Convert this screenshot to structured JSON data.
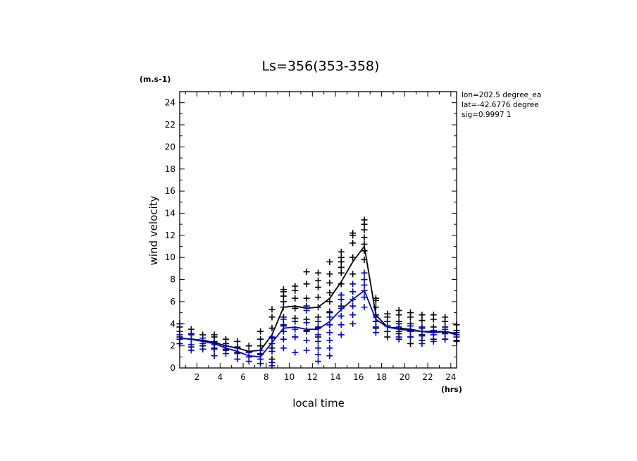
{
  "chart_data": {
    "type": "line",
    "title": "Ls=356(353-358)",
    "xlabel": "local time",
    "ylabel": "wind velocity",
    "xunit": "(hrs)",
    "yunit": "(m.s-1)",
    "xlim": [
      0.5,
      24.5
    ],
    "ylim": [
      0,
      25
    ],
    "xticks": [
      2,
      4,
      6,
      8,
      10,
      12,
      14,
      16,
      18,
      20,
      22,
      24
    ],
    "yticks": [
      0,
      2,
      4,
      6,
      8,
      10,
      12,
      14,
      16,
      18,
      20,
      22,
      24
    ],
    "grid": false,
    "annotations": [
      "lon=202.5 degree_ea",
      "lat=-42.6776 degree",
      "sig=0.9997 1"
    ],
    "x": [
      0.5,
      1.5,
      2.5,
      3.5,
      4.5,
      5.5,
      6.5,
      7.5,
      8.5,
      9.5,
      10.5,
      11.5,
      12.5,
      13.5,
      14.5,
      15.5,
      16.5,
      17.5,
      18.5,
      19.5,
      20.5,
      21.5,
      22.5,
      23.5,
      24.5
    ],
    "series": [
      {
        "color": "#000000",
        "mean": [
          2.7,
          2.6,
          2.5,
          2.3,
          2.0,
          1.8,
          1.5,
          1.6,
          3.0,
          5.5,
          5.6,
          5.4,
          5.5,
          6.3,
          7.8,
          9.6,
          11.0,
          4.8,
          3.7,
          3.6,
          3.5,
          3.3,
          3.3,
          3.3,
          3.1
        ],
        "scatter": [
          [
            2.2,
            2.8,
            3.3,
            3.7,
            4.0
          ],
          [
            1.9,
            2.6,
            3.1,
            3.5
          ],
          [
            2.0,
            2.5,
            3.0
          ],
          [
            1.8,
            2.3,
            2.8,
            3.0
          ],
          [
            1.6,
            2.2,
            2.6
          ],
          [
            1.4,
            1.9,
            2.4
          ],
          [
            1.0,
            1.5,
            2.0
          ],
          [
            1.2,
            2.0,
            2.6,
            3.3
          ],
          [
            0.8,
            1.8,
            2.7,
            3.6,
            4.6,
            5.3
          ],
          [
            3.8,
            4.6,
            5.5,
            6.0,
            6.5,
            6.9,
            7.1
          ],
          [
            2.8,
            4.5,
            5.4,
            6.3,
            7.0,
            7.4
          ],
          [
            3.4,
            4.4,
            5.6,
            6.3,
            7.6,
            8.7
          ],
          [
            2.8,
            3.7,
            4.6,
            5.5,
            6.4,
            7.3,
            7.9,
            8.6
          ],
          [
            3.9,
            5.0,
            6.0,
            6.8,
            7.7,
            8.5,
            9.6
          ],
          [
            5.6,
            6.6,
            7.6,
            8.6,
            9.1,
            9.6,
            10.0,
            10.5
          ],
          [
            8.5,
            10.0,
            11.3,
            12.0,
            12.2
          ],
          [
            9.8,
            10.6,
            11.2,
            11.8,
            12.5,
            13.0,
            13.4
          ],
          [
            3.6,
            4.2,
            4.8,
            5.5,
            6.1,
            6.3
          ],
          [
            2.8,
            3.3,
            3.8,
            4.2,
            4.6,
            4.9
          ],
          [
            2.6,
            3.1,
            3.6,
            4.2,
            4.8,
            5.2
          ],
          [
            2.2,
            2.8,
            3.4,
            4.0,
            4.6,
            5.0
          ],
          [
            2.5,
            3.0,
            3.6,
            4.3,
            4.8
          ],
          [
            2.6,
            3.2,
            3.7,
            4.4,
            4.8
          ],
          [
            2.6,
            3.2,
            3.7,
            4.2,
            4.6
          ],
          [
            2.5,
            3.0,
            3.4,
            3.9
          ]
        ]
      },
      {
        "color": "#0000cc",
        "mean": [
          2.7,
          2.6,
          2.4,
          2.2,
          1.8,
          1.5,
          1.1,
          1.0,
          2.3,
          3.6,
          3.7,
          3.5,
          3.5,
          4.2,
          5.3,
          6.2,
          7.0,
          4.4,
          3.7,
          3.5,
          3.4,
          3.3,
          3.2,
          3.3,
          3.0
        ],
        "scatter": [
          [
            2.2,
            2.6,
            3.0,
            3.3
          ],
          [
            1.6,
            2.1,
            2.6,
            3.0
          ],
          [
            1.7,
            2.2,
            2.7
          ],
          [
            1.1,
            1.7,
            2.1,
            2.4
          ],
          [
            1.3,
            1.7,
            2.0
          ],
          [
            0.8,
            1.3,
            1.8
          ],
          [
            0.6,
            1.0,
            1.4
          ],
          [
            0.4,
            0.8,
            1.3,
            1.6
          ],
          [
            0.2,
            0.5,
            1.5,
            2.2,
            2.8
          ],
          [
            1.8,
            2.6,
            3.3,
            3.9,
            4.4
          ],
          [
            1.4,
            2.8,
            3.5,
            4.2
          ],
          [
            1.6,
            2.5,
            3.3,
            4.1,
            5.2,
            5.6
          ],
          [
            0.6,
            1.2,
            1.8,
            2.4,
            3.0,
            3.6,
            4.2
          ],
          [
            1.1,
            1.8,
            2.5,
            3.2,
            3.9,
            4.6,
            5.1
          ],
          [
            3.0,
            3.9,
            4.7,
            5.4,
            6.2,
            6.6
          ],
          [
            4.0,
            4.8,
            5.6,
            6.2,
            6.9,
            7.6
          ],
          [
            5.5,
            6.4,
            7.0,
            7.5,
            8.0,
            8.6
          ],
          [
            3.2,
            3.7,
            4.2,
            4.6
          ],
          [
            3.3,
            3.8,
            4.2
          ],
          [
            2.8,
            3.3,
            3.7,
            4.0
          ],
          [
            2.8,
            3.3,
            3.8
          ],
          [
            2.2,
            2.9,
            3.3,
            3.7
          ],
          [
            2.4,
            3.0,
            3.4
          ],
          [
            2.6,
            3.1,
            3.5
          ],
          [
            2.4,
            2.8,
            3.2
          ]
        ]
      }
    ]
  }
}
